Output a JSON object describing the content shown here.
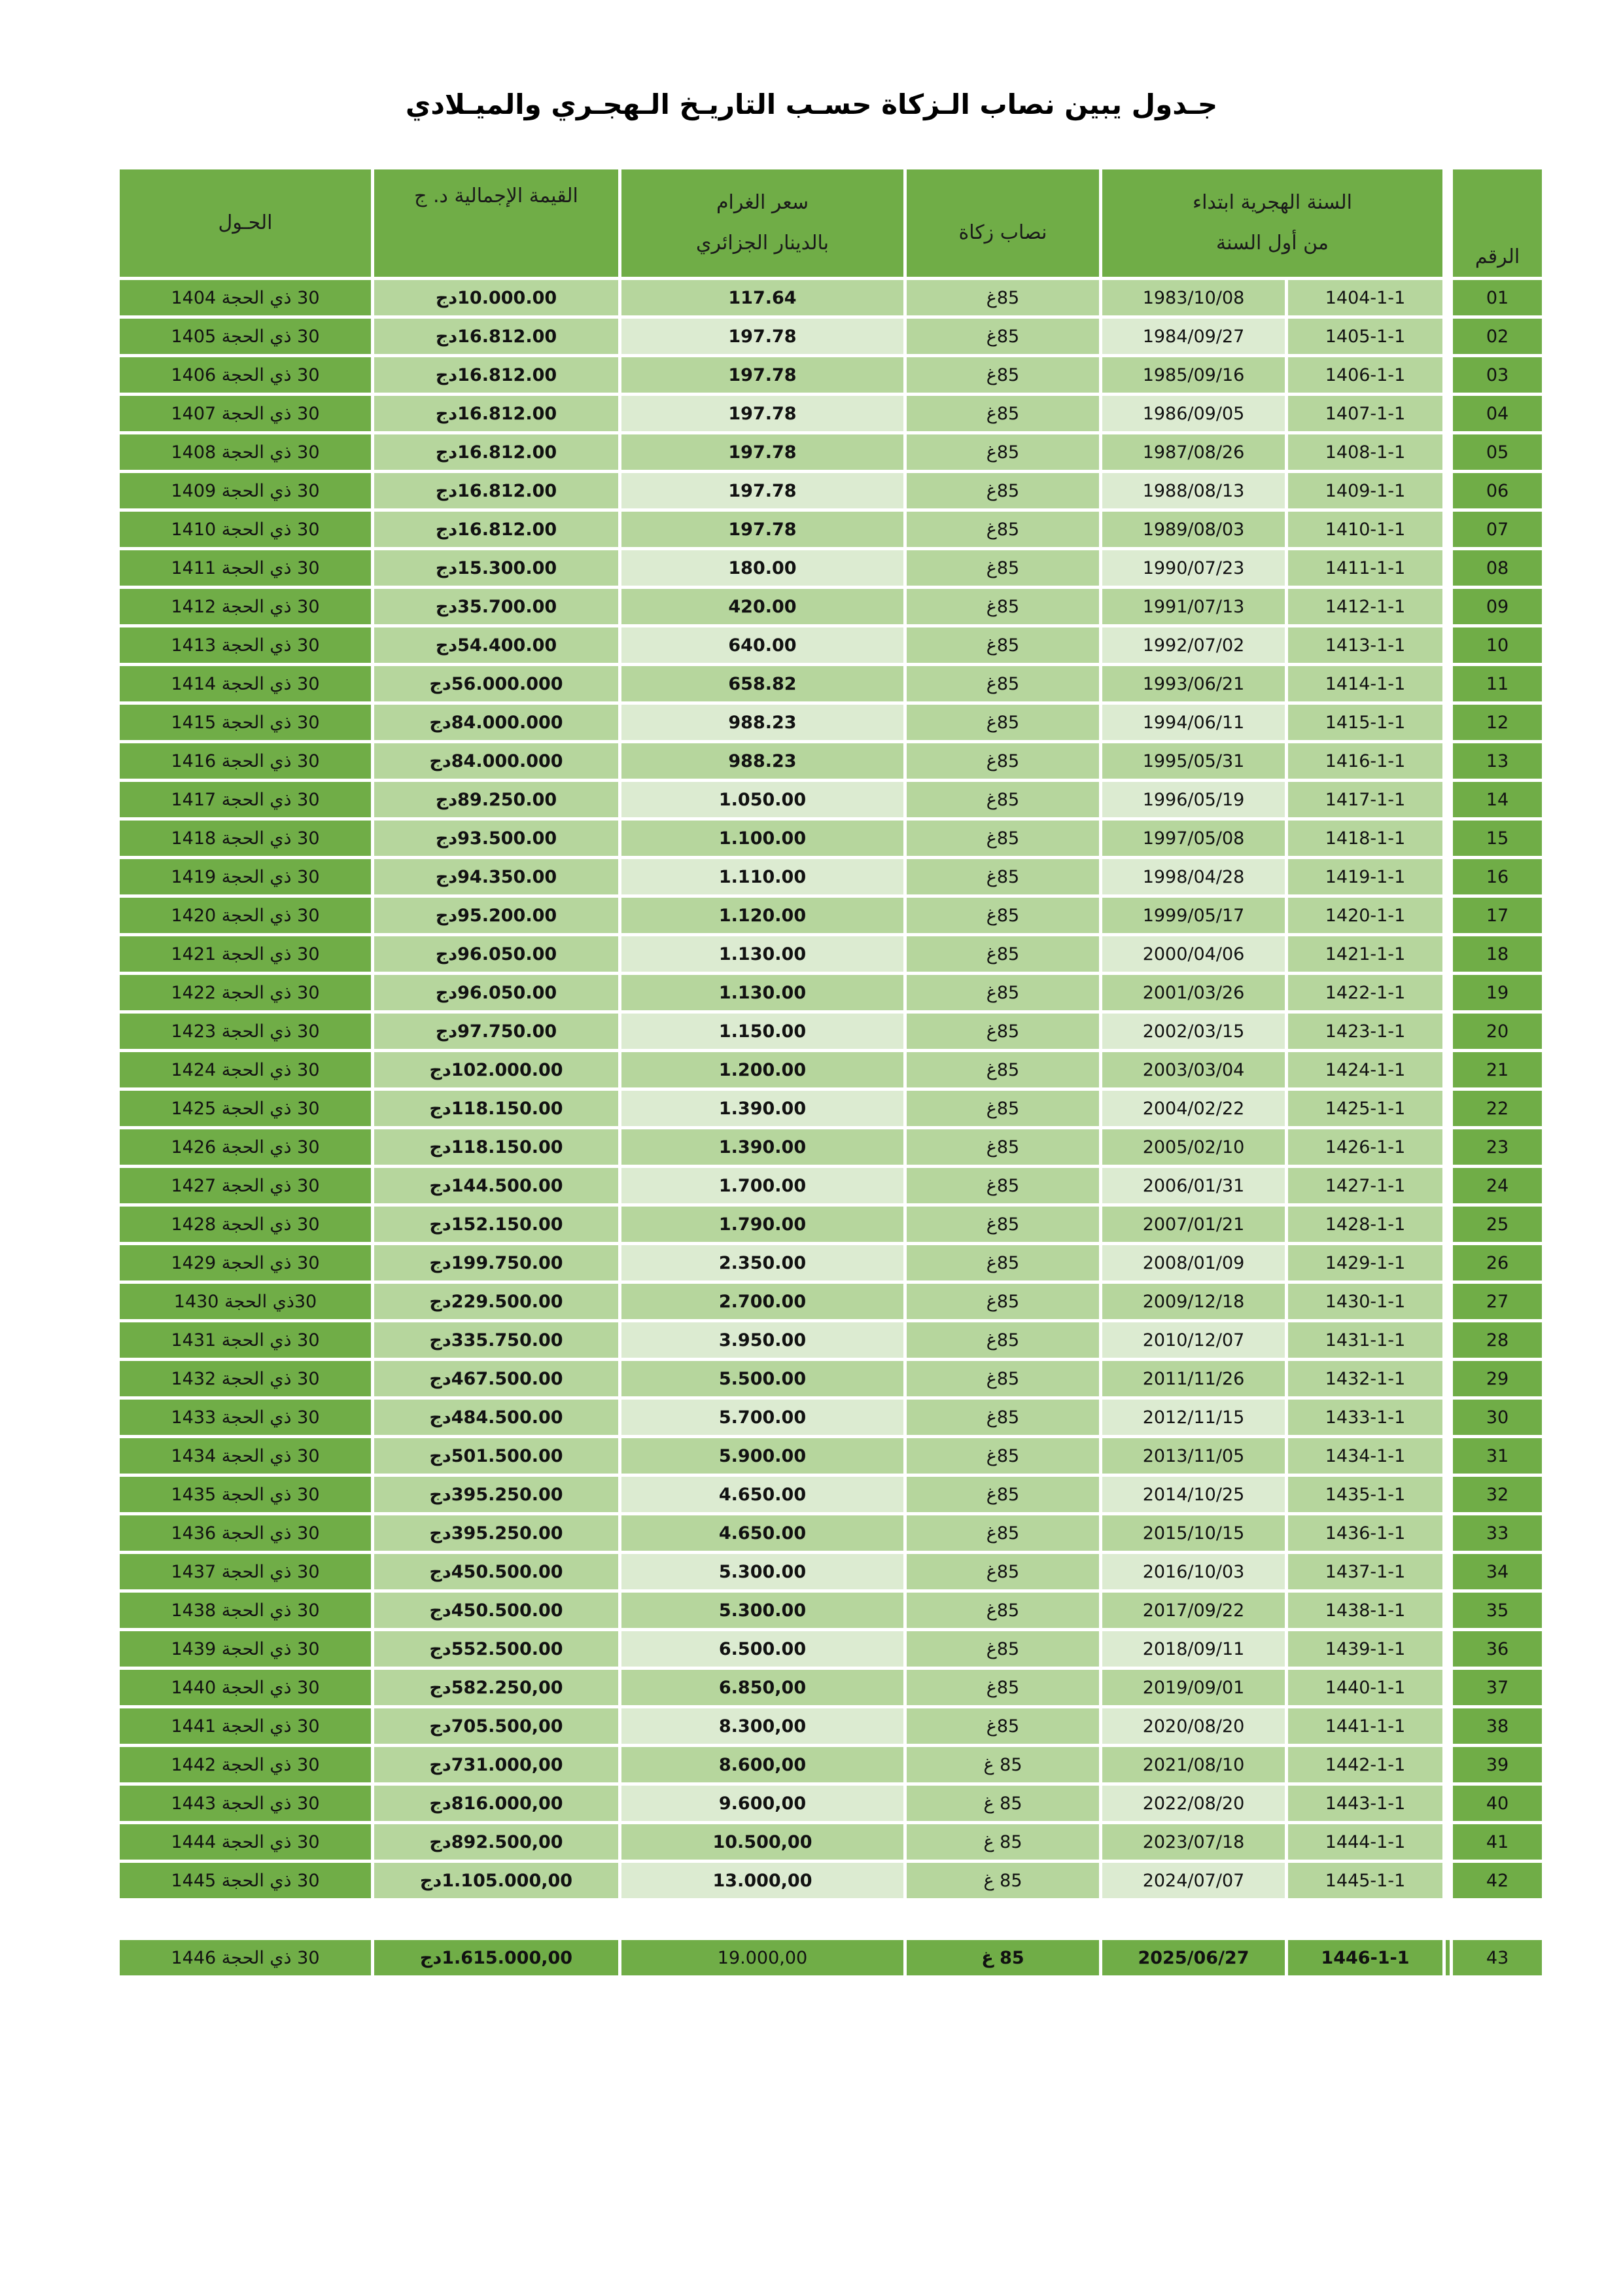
{
  "title": "جـدول يبين نصاب الـزكاة حسـب التاريـخ الـهجـري والميـلادي",
  "header": {
    "number": "الرقم",
    "hijri_line1": "السنة الهجرية ابتداء",
    "hijri_line2": "من أول السنة",
    "nisab": "نصاب زكاة",
    "price_line1": "سعر الغرام",
    "price_line2": "بالدينار الجزائري",
    "total": "القيمة الإجمالية د. ج",
    "hawl": "الحـول"
  },
  "colors": {
    "dark_green": "#70ad47",
    "mid_green": "#b6d69d",
    "light_green": "#dcebd1"
  },
  "rows": [
    {
      "n": "01",
      "hijri": "1404-1-1",
      "greg": "1983/10/08",
      "nisab": "85غ",
      "price": "117.64",
      "total": "10.000.00دج",
      "hawl": "30 ذي الحجة 1404"
    },
    {
      "n": "02",
      "hijri": "1405-1-1",
      "greg": "1984/09/27",
      "nisab": "85غ",
      "price": "197.78",
      "total": "16.812.00دج",
      "hawl": "30 ذي الحجة 1405"
    },
    {
      "n": "03",
      "hijri": "1406-1-1",
      "greg": "1985/09/16",
      "nisab": "85غ",
      "price": "197.78",
      "total": "16.812.00دج",
      "hawl": "30 ذي الحجة 1406"
    },
    {
      "n": "04",
      "hijri": "1407-1-1",
      "greg": "1986/09/05",
      "nisab": "85غ",
      "price": "197.78",
      "total": "16.812.00دج",
      "hawl": "30 ذي الحجة 1407"
    },
    {
      "n": "05",
      "hijri": "1408-1-1",
      "greg": "1987/08/26",
      "nisab": "85غ",
      "price": "197.78",
      "total": "16.812.00دج",
      "hawl": "30 ذي الحجة 1408"
    },
    {
      "n": "06",
      "hijri": "1409-1-1",
      "greg": "1988/08/13",
      "nisab": "85غ",
      "price": "197.78",
      "total": "16.812.00دج",
      "hawl": "30 ذي الحجة 1409"
    },
    {
      "n": "07",
      "hijri": "1410-1-1",
      "greg": "1989/08/03",
      "nisab": "85غ",
      "price": "197.78",
      "total": "16.812.00دج",
      "hawl": "30 ذي الحجة 1410"
    },
    {
      "n": "08",
      "hijri": "1411-1-1",
      "greg": "1990/07/23",
      "nisab": "85غ",
      "price": "180.00",
      "total": "15.300.00دج",
      "hawl": "30 ذي الحجة 1411"
    },
    {
      "n": "09",
      "hijri": "1412-1-1",
      "greg": "1991/07/13",
      "nisab": "85غ",
      "price": "420.00",
      "total": "35.700.00دج",
      "hawl": "30 ذي الحجة 1412"
    },
    {
      "n": "10",
      "hijri": "1413-1-1",
      "greg": "1992/07/02",
      "nisab": "85غ",
      "price": "640.00",
      "total": "54.400.00دج",
      "hawl": "30 ذي الحجة 1413"
    },
    {
      "n": "11",
      "hijri": "1414-1-1",
      "greg": "1993/06/21",
      "nisab": "85غ",
      "price": "658.82",
      "total": "56.000.000دج",
      "hawl": "30 ذي الحجة 1414"
    },
    {
      "n": "12",
      "hijri": "1415-1-1",
      "greg": "1994/06/11",
      "nisab": "85غ",
      "price": "988.23",
      "total": "84.000.000دج",
      "hawl": "30 ذي الحجة 1415"
    },
    {
      "n": "13",
      "hijri": "1416-1-1",
      "greg": "1995/05/31",
      "nisab": "85غ",
      "price": "988.23",
      "total": "84.000.000دج",
      "hawl": "30 ذي الحجة 1416"
    },
    {
      "n": "14",
      "hijri": "1417-1-1",
      "greg": "1996/05/19",
      "nisab": "85غ",
      "price": "1.050.00",
      "total": "89.250.00دج",
      "hawl": "30 ذي الحجة 1417"
    },
    {
      "n": "15",
      "hijri": "1418-1-1",
      "greg": "1997/05/08",
      "nisab": "85غ",
      "price": "1.100.00",
      "total": "93.500.00دج",
      "hawl": "30 ذي الحجة 1418"
    },
    {
      "n": "16",
      "hijri": "1419-1-1",
      "greg": "1998/04/28",
      "nisab": "85غ",
      "price": "1.110.00",
      "total": "94.350.00دج",
      "hawl": "30 ذي الحجة 1419"
    },
    {
      "n": "17",
      "hijri": "1420-1-1",
      "greg": "1999/05/17",
      "nisab": "85غ",
      "price": "1.120.00",
      "total": "95.200.00دج",
      "hawl": "30 ذي الحجة 1420"
    },
    {
      "n": "18",
      "hijri": "1421-1-1",
      "greg": "2000/04/06",
      "nisab": "85غ",
      "price": "1.130.00",
      "total": "96.050.00دج",
      "hawl": "30 ذي الحجة 1421"
    },
    {
      "n": "19",
      "hijri": "1422-1-1",
      "greg": "2001/03/26",
      "nisab": "85غ",
      "price": "1.130.00",
      "total": "96.050.00دج",
      "hawl": "30 ذي الحجة 1422"
    },
    {
      "n": "20",
      "hijri": "1423-1-1",
      "greg": "2002/03/15",
      "nisab": "85غ",
      "price": "1.150.00",
      "total": "97.750.00دج",
      "hawl": "30 ذي الحجة 1423"
    },
    {
      "n": "21",
      "hijri": "1424-1-1",
      "greg": "2003/03/04",
      "nisab": "85غ",
      "price": "1.200.00",
      "total": "102.000.00دج",
      "hawl": "30 ذي الحجة 1424"
    },
    {
      "n": "22",
      "hijri": "1425-1-1",
      "greg": "2004/02/22",
      "nisab": "85غ",
      "price": "1.390.00",
      "total": "118.150.00دج",
      "hawl": "30 ذي الحجة 1425"
    },
    {
      "n": "23",
      "hijri": "1426-1-1",
      "greg": "2005/02/10",
      "nisab": "85غ",
      "price": "1.390.00",
      "total": "118.150.00دج",
      "hawl": "30 ذي الحجة 1426"
    },
    {
      "n": "24",
      "hijri": "1427-1-1",
      "greg": "2006/01/31",
      "nisab": "85غ",
      "price": "1.700.00",
      "total": "144.500.00دج",
      "hawl": "30 ذي الحجة 1427"
    },
    {
      "n": "25",
      "hijri": "1428-1-1",
      "greg": "2007/01/21",
      "nisab": "85غ",
      "price": "1.790.00",
      "total": "152.150.00دج",
      "hawl": "30 ذي الحجة 1428"
    },
    {
      "n": "26",
      "hijri": "1429-1-1",
      "greg": "2008/01/09",
      "nisab": "85غ",
      "price": "2.350.00",
      "total": "199.750.00دج",
      "hawl": "30 ذي الحجة 1429"
    },
    {
      "n": "27",
      "hijri": "1430-1-1",
      "greg": "2009/12/18",
      "nisab": "85غ",
      "price": "2.700.00",
      "total": "229.500.00دج",
      "hawl": "30ذي الحجة 1430"
    },
    {
      "n": "28",
      "hijri": "1431-1-1",
      "greg": "2010/12/07",
      "nisab": "85غ",
      "price": "3.950.00",
      "total": "335.750.00دج",
      "hawl": "30 ذي الحجة 1431"
    },
    {
      "n": "29",
      "hijri": "1432-1-1",
      "greg": "2011/11/26",
      "nisab": "85غ",
      "price": "5.500.00",
      "total": "467.500.00دج",
      "hawl": "30 ذي الحجة 1432"
    },
    {
      "n": "30",
      "hijri": "1433-1-1",
      "greg": "2012/11/15",
      "nisab": "85غ",
      "price": "5.700.00",
      "total": "484.500.00دج",
      "hawl": "30 ذي الحجة 1433"
    },
    {
      "n": "31",
      "hijri": "1434-1-1",
      "greg": "2013/11/05",
      "nisab": "85غ",
      "price": "5.900.00",
      "total": "501.500.00دج",
      "hawl": "30 ذي الحجة 1434"
    },
    {
      "n": "32",
      "hijri": "1435-1-1",
      "greg": "2014/10/25",
      "nisab": "85غ",
      "price": "4.650.00",
      "total": "395.250.00دج",
      "hawl": "30 ذي الحجة 1435"
    },
    {
      "n": "33",
      "hijri": "1436-1-1",
      "greg": "2015/10/15",
      "nisab": "85غ",
      "price": "4.650.00",
      "total": "395.250.00دج",
      "hawl": "30 ذي الحجة 1436"
    },
    {
      "n": "34",
      "hijri": "1437-1-1",
      "greg": "2016/10/03",
      "nisab": "85غ",
      "price": "5.300.00",
      "total": "450.500.00دج",
      "hawl": "30 ذي الحجة 1437"
    },
    {
      "n": "35",
      "hijri": "1438-1-1",
      "greg": "2017/09/22",
      "nisab": "85غ",
      "price": "5.300.00",
      "total": "450.500.00دج",
      "hawl": "30 ذي الحجة 1438"
    },
    {
      "n": "36",
      "hijri": "1439-1-1",
      "greg": "2018/09/11",
      "nisab": "85غ",
      "price": "6.500.00",
      "total": "552.500.00دج",
      "hawl": "30 ذي الحجة 1439"
    },
    {
      "n": "37",
      "hijri": "1440-1-1",
      "greg": "2019/09/01",
      "nisab": "85غ",
      "price": "6.850,00",
      "total": "582.250,00دج",
      "hawl": "30 ذي الحجة 1440"
    },
    {
      "n": "38",
      "hijri": "1441-1-1",
      "greg": "2020/08/20",
      "nisab": "85غ",
      "price": "8.300,00",
      "total": "705.500,00دج",
      "hawl": "30 ذي الحجة 1441"
    },
    {
      "n": "39",
      "hijri": "1442-1-1",
      "greg": "2021/08/10",
      "nisab": "85 غ",
      "price": "8.600,00",
      "total": "731.000,00دج",
      "hawl": "30 ذي الحجة 1442"
    },
    {
      "n": "40",
      "hijri": "1443-1-1",
      "greg": "2022/08/20",
      "nisab": "85 غ",
      "price": "9.600,00",
      "total": "816.000,00دج",
      "hawl": "30 ذي الحجة 1443"
    },
    {
      "n": "41",
      "hijri": "1444-1-1",
      "greg": "2023/07/18",
      "nisab": "85 غ",
      "price": "10.500,00",
      "total": "892.500,00دج",
      "hawl": "30 ذي الحجة 1444"
    },
    {
      "n": "42",
      "hijri": "1445-1-1",
      "greg": "2024/07/07",
      "nisab": "85 غ",
      "price": "13.000,00",
      "total": "1.105.000,00دج",
      "hawl": "30 ذي الحجة 1445"
    }
  ],
  "last_row": {
    "n": "43",
    "hijri": "1446-1-1",
    "greg": "2025/06/27",
    "nisab": "85 غ",
    "price": "19.000,00",
    "total": "1.615.000,00دج",
    "hawl": "30 ذي الحجة 1446"
  }
}
